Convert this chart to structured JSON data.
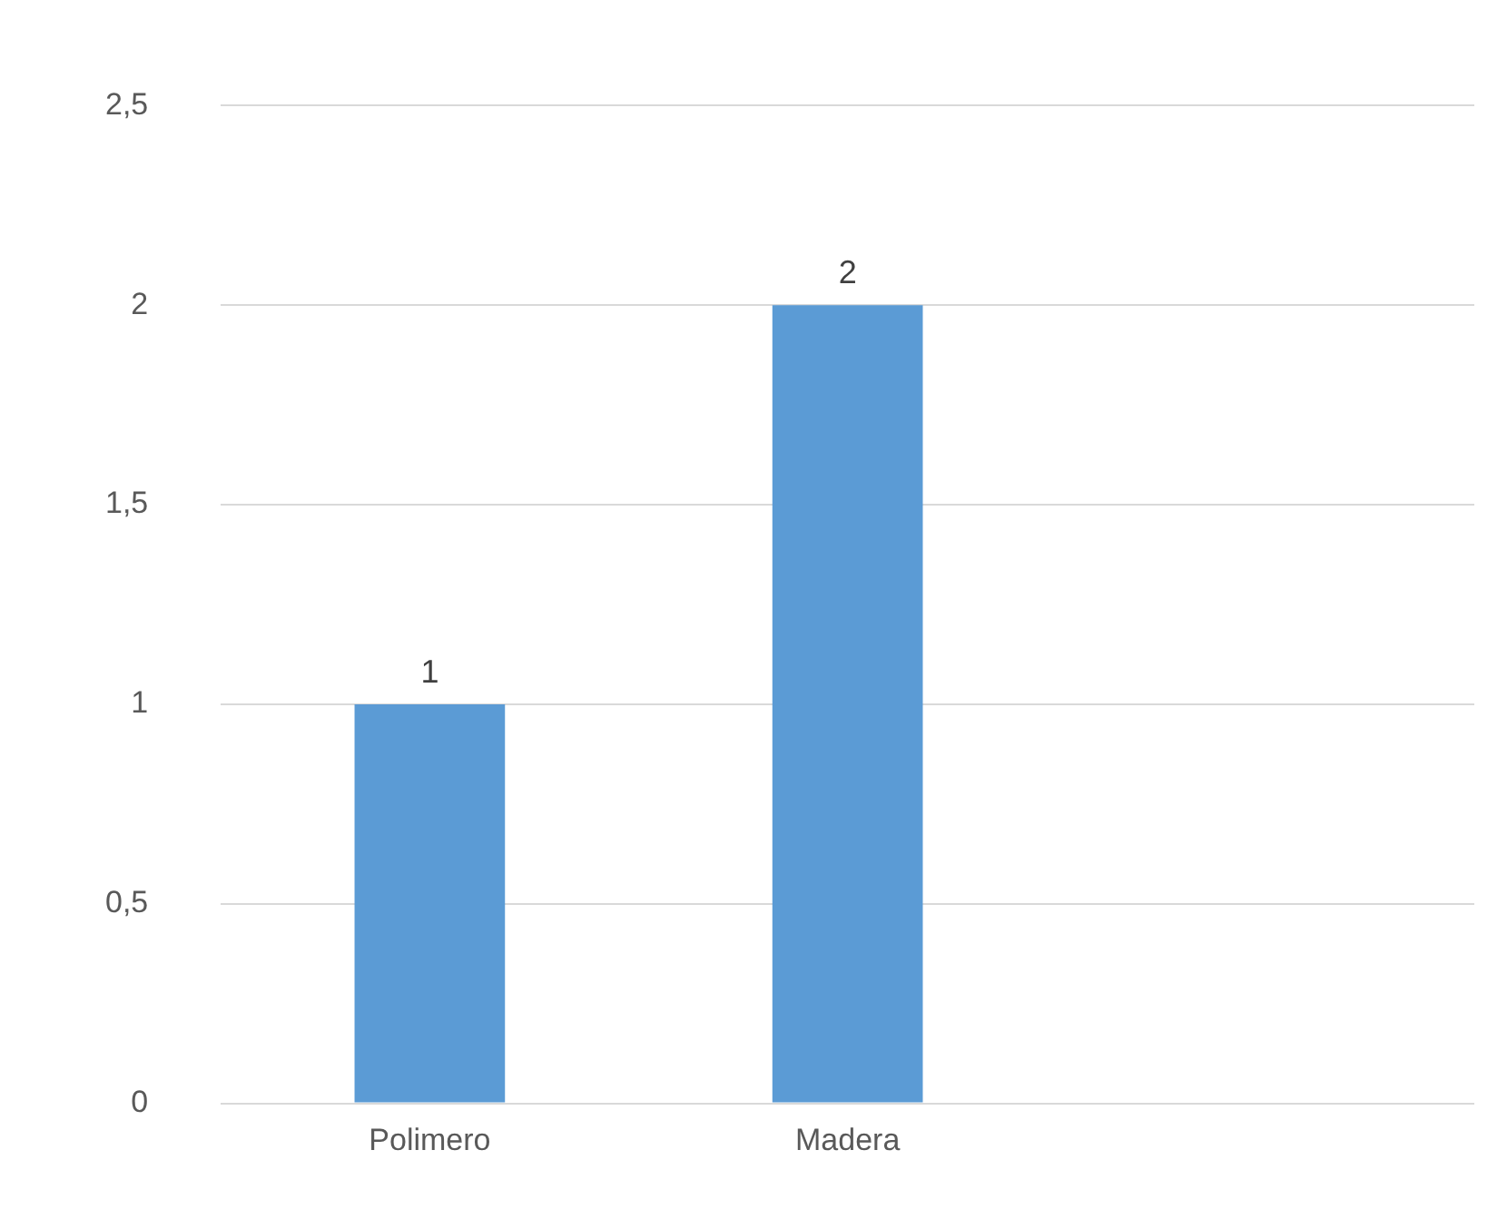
{
  "chart_data": {
    "type": "bar",
    "categories": [
      "Polimero",
      "Madera",
      null
    ],
    "values": [
      1,
      2,
      null
    ],
    "color": "#5b9bd5",
    "ylim": [
      0,
      2.5
    ],
    "yticks": [
      0,
      {
        "value": 0.5,
        "label": "0,5"
      },
      1,
      {
        "value": 1.5,
        "label": "1,5"
      },
      2,
      {
        "value": 2.5,
        "label": "2,5"
      }
    ],
    "grid": "y",
    "data_labels": true,
    "legend": false
  }
}
